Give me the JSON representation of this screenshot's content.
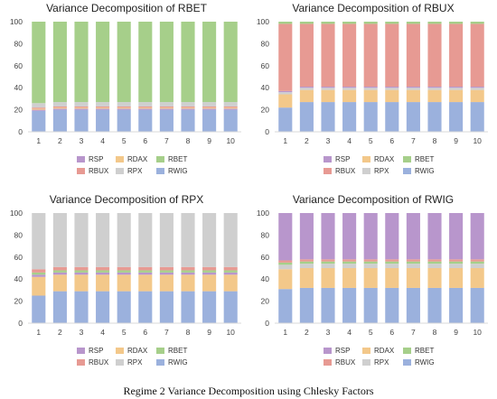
{
  "colors": {
    "RSP": "#b896cc",
    "RDAX": "#f3c88a",
    "RBET": "#a6cf8a",
    "RBUX": "#e79a93",
    "RPX": "#cfcfcf",
    "RWIG": "#9bb1dd"
  },
  "panels": [
    {
      "title": "Variance Decomposition of RBET"
    },
    {
      "title": "Variance Decomposition of RBUX"
    },
    {
      "title": "Variance Decomposition of RPX"
    },
    {
      "title": "Variance Decomposition of RWIG"
    }
  ],
  "legend": [
    {
      "label": "RSP",
      "color": "#b896cc"
    },
    {
      "label": "RDAX",
      "color": "#f3c88a"
    },
    {
      "label": "RBET",
      "color": "#a6cf8a"
    },
    {
      "label": "RBUX",
      "color": "#e79a93"
    },
    {
      "label": "RPX",
      "color": "#cfcfcf"
    },
    {
      "label": "RWIG",
      "color": "#9bb1dd"
    }
  ],
  "caption": "Regime 2 Variance Decomposition using Chlesky Factors",
  "chart_data": [
    {
      "type": "bar",
      "stacked": true,
      "title": "Variance Decomposition of RBET",
      "categories": [
        "1",
        "2",
        "3",
        "4",
        "5",
        "6",
        "7",
        "8",
        "9",
        "10"
      ],
      "ylim": [
        0,
        100
      ],
      "yticks": [
        0,
        20,
        40,
        60,
        80,
        100
      ],
      "grid": false,
      "legend_position": "bottom",
      "series": [
        {
          "name": "RWIG",
          "color": "#9bb1dd",
          "values": [
            19,
            20,
            20,
            20,
            20,
            20,
            20,
            20,
            20,
            20
          ]
        },
        {
          "name": "RSP",
          "color": "#b896cc",
          "values": [
            1,
            1,
            1,
            1,
            1,
            1,
            1,
            1,
            1,
            1
          ]
        },
        {
          "name": "RDAX",
          "color": "#f3c88a",
          "values": [
            1,
            1,
            1,
            1,
            1,
            1,
            1,
            1,
            1,
            1
          ]
        },
        {
          "name": "RBUX",
          "color": "#e79a93",
          "values": [
            1,
            1,
            1,
            1,
            1,
            1,
            1,
            1,
            1,
            1
          ]
        },
        {
          "name": "RPX",
          "color": "#cfcfcf",
          "values": [
            4,
            4,
            4,
            4,
            4,
            4,
            4,
            4,
            4,
            4
          ]
        },
        {
          "name": "RBET",
          "color": "#a6cf8a",
          "values": [
            74,
            73,
            73,
            73,
            73,
            73,
            73,
            73,
            73,
            73
          ]
        }
      ]
    },
    {
      "type": "bar",
      "stacked": true,
      "title": "Variance Decomposition of RBUX",
      "categories": [
        "1",
        "2",
        "3",
        "4",
        "5",
        "6",
        "7",
        "8",
        "9",
        "10"
      ],
      "ylim": [
        0,
        100
      ],
      "yticks": [
        0,
        20,
        40,
        60,
        80,
        100
      ],
      "grid": false,
      "legend_position": "bottom",
      "series": [
        {
          "name": "RWIG",
          "color": "#9bb1dd",
          "values": [
            22,
            27,
            27,
            27,
            27,
            27,
            27,
            27,
            27,
            27
          ]
        },
        {
          "name": "RDAX",
          "color": "#f3c88a",
          "values": [
            12,
            11,
            11,
            11,
            11,
            11,
            11,
            11,
            11,
            11
          ]
        },
        {
          "name": "RPX",
          "color": "#cfcfcf",
          "values": [
            2,
            2,
            2,
            2,
            2,
            2,
            2,
            2,
            2,
            2
          ]
        },
        {
          "name": "RSP",
          "color": "#b896cc",
          "values": [
            1,
            1,
            1,
            1,
            1,
            1,
            1,
            1,
            1,
            1
          ]
        },
        {
          "name": "RBUX",
          "color": "#e79a93",
          "values": [
            61,
            57,
            57,
            57,
            57,
            57,
            57,
            57,
            57,
            57
          ]
        },
        {
          "name": "RBET",
          "color": "#a6cf8a",
          "values": [
            2,
            2,
            2,
            2,
            2,
            2,
            2,
            2,
            2,
            2
          ]
        }
      ]
    },
    {
      "type": "bar",
      "stacked": true,
      "title": "Variance Decomposition of RPX",
      "categories": [
        "1",
        "2",
        "3",
        "4",
        "5",
        "6",
        "7",
        "8",
        "9",
        "10"
      ],
      "ylim": [
        0,
        100
      ],
      "yticks": [
        0,
        20,
        40,
        60,
        80,
        100
      ],
      "grid": false,
      "legend_position": "bottom",
      "series": [
        {
          "name": "RWIG",
          "color": "#9bb1dd",
          "values": [
            25,
            29,
            29,
            29,
            29,
            29,
            29,
            29,
            29,
            29
          ]
        },
        {
          "name": "RDAX",
          "color": "#f3c88a",
          "values": [
            17,
            15,
            15,
            15,
            15,
            15,
            15,
            15,
            15,
            15
          ]
        },
        {
          "name": "RSP",
          "color": "#b896cc",
          "values": [
            2,
            2,
            2,
            2,
            2,
            2,
            2,
            2,
            2,
            2
          ]
        },
        {
          "name": "RBET",
          "color": "#a6cf8a",
          "values": [
            2,
            2,
            2,
            2,
            2,
            2,
            2,
            2,
            2,
            2
          ]
        },
        {
          "name": "RBUX",
          "color": "#e79a93",
          "values": [
            3,
            3,
            3,
            3,
            3,
            3,
            3,
            3,
            3,
            3
          ]
        },
        {
          "name": "RPX",
          "color": "#cfcfcf",
          "values": [
            51,
            49,
            49,
            49,
            49,
            49,
            49,
            49,
            49,
            49
          ]
        }
      ]
    },
    {
      "type": "bar",
      "stacked": true,
      "title": "Variance Decomposition of RWIG",
      "categories": [
        "1",
        "2",
        "3",
        "4",
        "5",
        "6",
        "7",
        "8",
        "9",
        "10"
      ],
      "ylim": [
        0,
        100
      ],
      "yticks": [
        0,
        20,
        40,
        60,
        80,
        100
      ],
      "grid": false,
      "legend_position": "bottom",
      "series": [
        {
          "name": "RWIG",
          "color": "#9bb1dd",
          "values": [
            31,
            32,
            32,
            32,
            32,
            32,
            32,
            32,
            32,
            32
          ]
        },
        {
          "name": "RDAX",
          "color": "#f3c88a",
          "values": [
            18,
            18,
            18,
            18,
            18,
            18,
            18,
            18,
            18,
            18
          ]
        },
        {
          "name": "RPX",
          "color": "#cfcfcf",
          "values": [
            4,
            4,
            4,
            4,
            4,
            4,
            4,
            4,
            4,
            4
          ]
        },
        {
          "name": "RBET",
          "color": "#a6cf8a",
          "values": [
            2,
            2,
            2,
            2,
            2,
            2,
            2,
            2,
            2,
            2
          ]
        },
        {
          "name": "RBUX",
          "color": "#e79a93",
          "values": [
            2,
            2,
            2,
            2,
            2,
            2,
            2,
            2,
            2,
            2
          ]
        },
        {
          "name": "RSP",
          "color": "#b896cc",
          "values": [
            43,
            42,
            42,
            42,
            42,
            42,
            42,
            42,
            42,
            42
          ]
        }
      ]
    }
  ]
}
